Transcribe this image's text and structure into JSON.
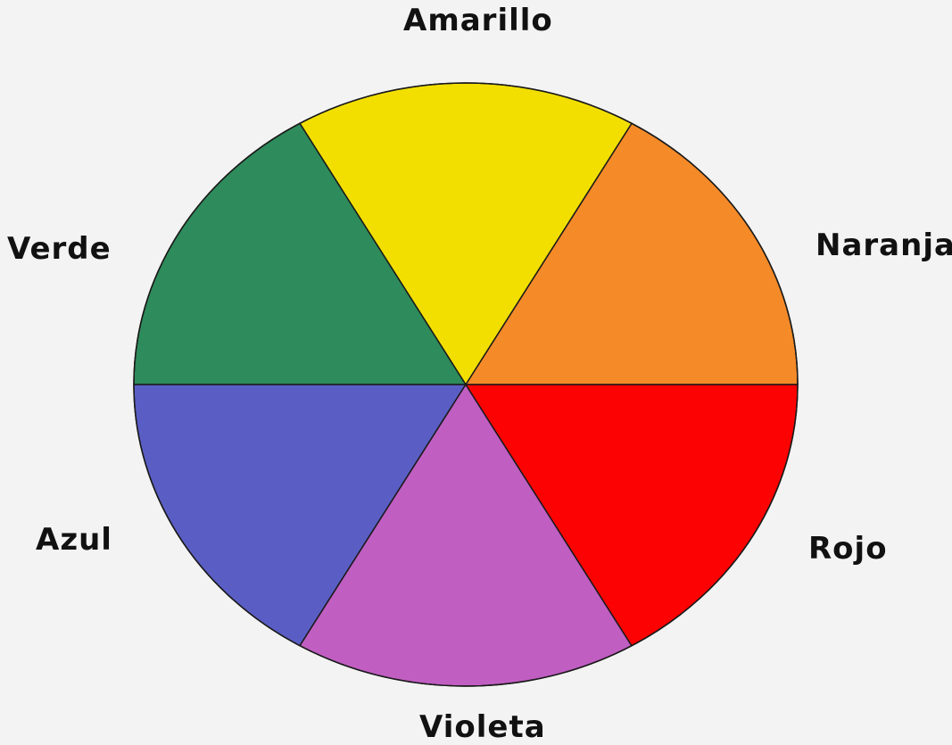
{
  "wheel": {
    "segments": [
      {
        "id": "naranja",
        "label": "Naranja",
        "color": "#f58a28"
      },
      {
        "id": "amarillo",
        "label": "Amarillo",
        "color": "#f2df00"
      },
      {
        "id": "verde",
        "label": "Verde",
        "color": "#2e8b5b"
      },
      {
        "id": "azul",
        "label": "Azul",
        "color": "#5a5ec4"
      },
      {
        "id": "violeta",
        "label": "Violeta",
        "color": "#c05ec2"
      },
      {
        "id": "rojo",
        "label": "Rojo",
        "color": "#fd0202"
      }
    ]
  }
}
